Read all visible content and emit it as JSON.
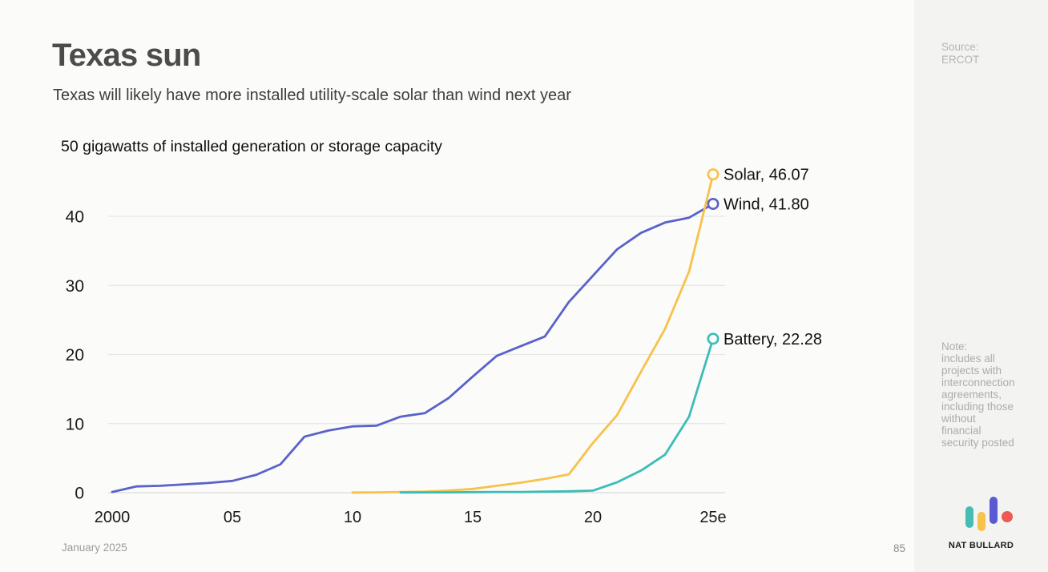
{
  "page": {
    "title": "Texas sun",
    "subtitle": "Texas will likely have more installed utility-scale solar than wind next year",
    "footer_date": "January 2025",
    "page_number": "85"
  },
  "sidebar": {
    "source_text": "Source:\nERCOT",
    "note_text": "Note:\nincludes all\nprojects with\ninterconnection\nagreements,\nincluding those\nwithout\nfinancial\nsecurity posted",
    "brand_name": "NAT BULLARD",
    "logo_colors": {
      "teal": "#45BDB5",
      "yellow": "#F6C24A",
      "indigo": "#5A5AD2",
      "red": "#EE5A52"
    }
  },
  "chart_data": {
    "type": "line",
    "title": "50 gigawatts of installed generation or storage capacity",
    "unit": "gigawatts",
    "years": [
      2000,
      2001,
      2002,
      2003,
      2004,
      2005,
      2006,
      2007,
      2008,
      2009,
      2010,
      2011,
      2012,
      2013,
      2014,
      2015,
      2016,
      2017,
      2018,
      2019,
      2020,
      2021,
      2022,
      2023,
      2024,
      2025
    ],
    "x_ticks": [
      {
        "year": 2000,
        "label": "2000"
      },
      {
        "year": 2005,
        "label": "05"
      },
      {
        "year": 2010,
        "label": "10"
      },
      {
        "year": 2015,
        "label": "15"
      },
      {
        "year": 2020,
        "label": "20"
      },
      {
        "year": 2025,
        "label": "25e"
      }
    ],
    "y_ticks": [
      0,
      10,
      20,
      30,
      40
    ],
    "ylim": [
      0,
      50
    ],
    "grid": "horizontal",
    "legend_position": "end-of-line-labels",
    "series": [
      {
        "name": "Wind",
        "color": "#5A62C9",
        "end_label": "Wind, 41.80",
        "end_value": 41.8,
        "values": [
          0.1,
          0.9,
          1.0,
          1.2,
          1.4,
          1.7,
          2.6,
          4.1,
          8.1,
          9.0,
          9.6,
          9.7,
          11.0,
          11.5,
          13.7,
          16.8,
          19.8,
          21.2,
          22.6,
          27.6,
          31.4,
          35.2,
          37.6,
          39.1,
          39.8,
          41.8
        ]
      },
      {
        "name": "Solar",
        "color": "#F7C24B",
        "end_label": "Solar, 46.07",
        "end_value": 46.07,
        "values": [
          null,
          null,
          null,
          null,
          null,
          null,
          null,
          null,
          null,
          null,
          0.02,
          0.05,
          0.1,
          0.15,
          0.3,
          0.55,
          1.0,
          1.45,
          2.0,
          2.65,
          7.2,
          11.2,
          17.5,
          23.7,
          32.0,
          46.07
        ]
      },
      {
        "name": "Battery",
        "color": "#3BBDB7",
        "end_label": "Battery, 22.28",
        "end_value": 22.28,
        "values": [
          null,
          null,
          null,
          null,
          null,
          null,
          null,
          null,
          null,
          null,
          null,
          null,
          0.03,
          0.05,
          0.05,
          0.08,
          0.1,
          0.1,
          0.15,
          0.2,
          0.3,
          1.5,
          3.2,
          5.5,
          11.0,
          22.28
        ]
      }
    ]
  }
}
